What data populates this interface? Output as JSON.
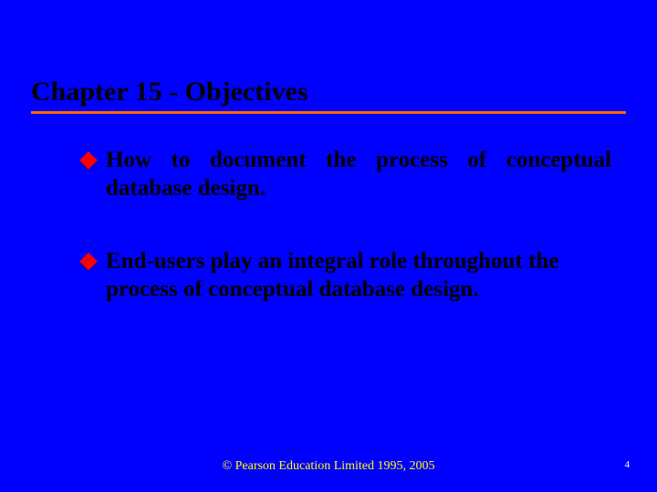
{
  "slide": {
    "background_color": "#0000ff",
    "title": {
      "text": "Chapter 15 - Objectives",
      "color": "#000000",
      "fontsize": 30,
      "underline_color": "#ff6600"
    },
    "bullets": [
      {
        "text": "How to document the process of conceptual database design.",
        "marker_color": "#ff0000",
        "text_color": "#000000",
        "fontsize": 25,
        "justify": true
      },
      {
        "text": "End-users play an integral role throughout the process of conceptual database design.",
        "marker_color": "#ff0000",
        "text_color": "#000000",
        "fontsize": 25,
        "justify": false
      }
    ],
    "footer": {
      "text": "© Pearson Education Limited 1995, 2005",
      "color": "#ffff00",
      "fontsize": 14
    },
    "page_number": {
      "text": "4",
      "color": "#ffffff",
      "fontsize": 11
    }
  }
}
